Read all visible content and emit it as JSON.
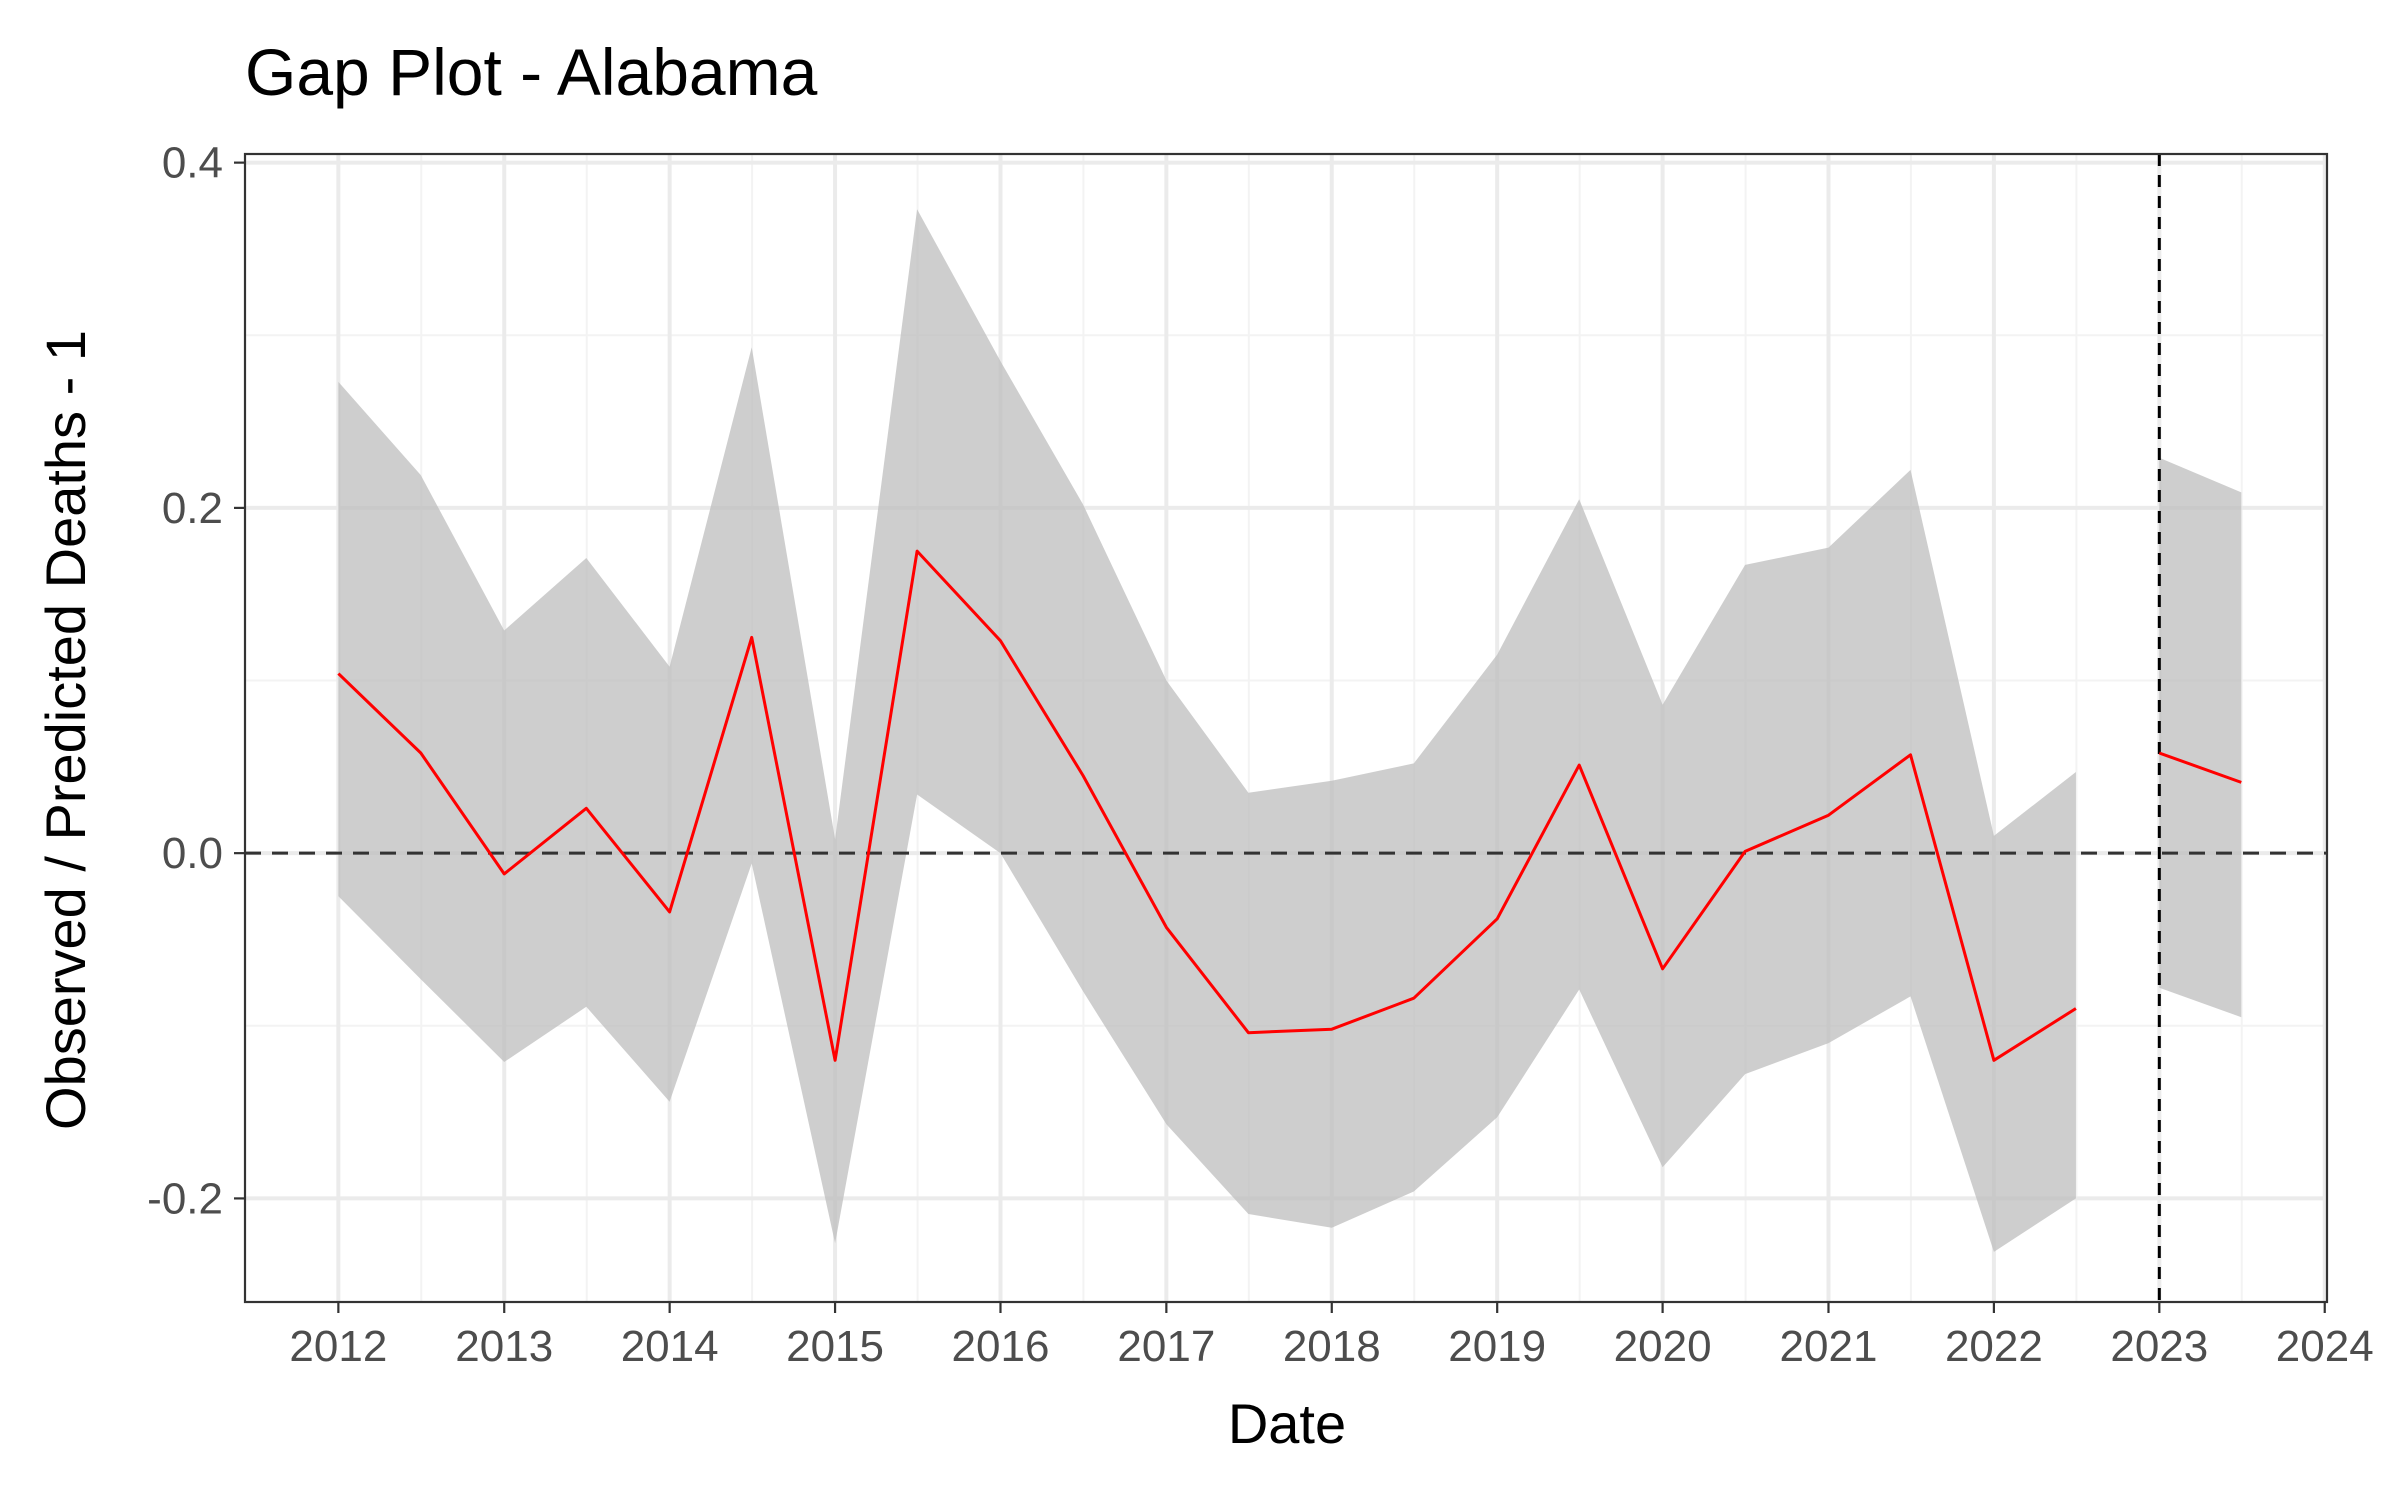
{
  "chart_data": {
    "type": "line",
    "title": "Gap Plot - Alabama",
    "xlabel": "Date",
    "ylabel": "Observed / Predicted Deaths - 1",
    "x_ticks": [
      "2012",
      "2013",
      "2014",
      "2015",
      "2016",
      "2017",
      "2018",
      "2019",
      "2020",
      "2021",
      "2022",
      "2023",
      "2024"
    ],
    "y_ticks": [
      "-0.2",
      "0.0",
      "0.2",
      "0.4"
    ],
    "xlim": [
      "2011-06-09",
      "2024-01-06"
    ],
    "ylim": [
      -0.26,
      0.405
    ],
    "grid": true,
    "legend": "none",
    "reference_lines": {
      "horizontal_dashed_y": 0.0,
      "vertical_dashed_x": "2023-01-01"
    },
    "colors": {
      "line": "#ff0000",
      "ribbon": "#bdbdbd",
      "grid_major": "#ebebeb",
      "grid_minor": "#f3f3f3",
      "panel_border": "#333333",
      "reference": "#333333"
    },
    "series": [
      {
        "segment": 1,
        "points": [
          {
            "x": "2012-01-01",
            "y": 0.104,
            "lower": -0.025,
            "upper": 0.273
          },
          {
            "x": "2012-07-01",
            "y": 0.058,
            "lower": -0.073,
            "upper": 0.219
          },
          {
            "x": "2013-01-01",
            "y": -0.012,
            "lower": -0.121,
            "upper": 0.129
          },
          {
            "x": "2013-07-01",
            "y": 0.026,
            "lower": -0.089,
            "upper": 0.171
          },
          {
            "x": "2014-01-01",
            "y": -0.034,
            "lower": -0.144,
            "upper": 0.108
          },
          {
            "x": "2014-07-01",
            "y": 0.125,
            "lower": -0.006,
            "upper": 0.293
          },
          {
            "x": "2015-01-01",
            "y": -0.12,
            "lower": -0.226,
            "upper": 0.008
          },
          {
            "x": "2015-07-01",
            "y": 0.175,
            "lower": 0.034,
            "upper": 0.373
          },
          {
            "x": "2016-01-01",
            "y": 0.123,
            "lower": 0.0,
            "upper": 0.285
          },
          {
            "x": "2016-07-01",
            "y": 0.045,
            "lower": -0.08,
            "upper": 0.202
          },
          {
            "x": "2017-01-01",
            "y": -0.043,
            "lower": -0.157,
            "upper": 0.1
          },
          {
            "x": "2017-07-01",
            "y": -0.104,
            "lower": -0.209,
            "upper": 0.035
          },
          {
            "x": "2018-01-01",
            "y": -0.102,
            "lower": -0.217,
            "upper": 0.042
          },
          {
            "x": "2018-07-01",
            "y": -0.084,
            "lower": -0.196,
            "upper": 0.052
          },
          {
            "x": "2019-01-01",
            "y": -0.038,
            "lower": -0.153,
            "upper": 0.115
          },
          {
            "x": "2019-07-01",
            "y": 0.051,
            "lower": -0.079,
            "upper": 0.205
          },
          {
            "x": "2020-01-01",
            "y": -0.067,
            "lower": -0.182,
            "upper": 0.086
          },
          {
            "x": "2020-07-01",
            "y": 0.001,
            "lower": -0.128,
            "upper": 0.167
          },
          {
            "x": "2021-01-01",
            "y": 0.022,
            "lower": -0.11,
            "upper": 0.177
          },
          {
            "x": "2021-07-01",
            "y": 0.057,
            "lower": -0.083,
            "upper": 0.222
          },
          {
            "x": "2022-01-01",
            "y": -0.12,
            "lower": -0.231,
            "upper": 0.01
          },
          {
            "x": "2022-07-01",
            "y": -0.09,
            "lower": -0.2,
            "upper": 0.047
          }
        ]
      },
      {
        "segment": 2,
        "points": [
          {
            "x": "2023-01-01",
            "y": 0.058,
            "lower": -0.078,
            "upper": 0.229
          },
          {
            "x": "2023-07-01",
            "y": 0.041,
            "lower": -0.095,
            "upper": 0.209
          }
        ]
      }
    ]
  }
}
